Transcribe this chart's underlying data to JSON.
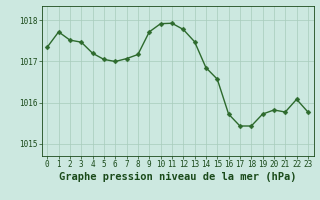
{
  "x": [
    0,
    1,
    2,
    3,
    4,
    5,
    6,
    7,
    8,
    9,
    10,
    11,
    12,
    13,
    14,
    15,
    16,
    17,
    18,
    19,
    20,
    21,
    22,
    23
  ],
  "y": [
    1017.35,
    1017.72,
    1017.52,
    1017.47,
    1017.2,
    1017.05,
    1017.0,
    1017.07,
    1017.17,
    1017.72,
    1017.92,
    1017.93,
    1017.78,
    1017.48,
    1016.85,
    1016.57,
    1015.72,
    1015.43,
    1015.43,
    1015.72,
    1015.82,
    1015.77,
    1016.08,
    1015.77
  ],
  "line_color": "#2d6a2d",
  "marker_color": "#2d6a2d",
  "bg_color": "#cce8e0",
  "plot_bg_color": "#cce8e0",
  "grid_color": "#a8ccbb",
  "text_color": "#1a4a1a",
  "xlabel": "Graphe pression niveau de la mer (hPa)",
  "ylim": [
    1014.7,
    1018.35
  ],
  "xlim": [
    -0.5,
    23.5
  ],
  "yticks": [
    1015,
    1016,
    1017,
    1018
  ],
  "xticks": [
    0,
    1,
    2,
    3,
    4,
    5,
    6,
    7,
    8,
    9,
    10,
    11,
    12,
    13,
    14,
    15,
    16,
    17,
    18,
    19,
    20,
    21,
    22,
    23
  ],
  "tick_fontsize": 5.5,
  "xlabel_fontsize": 7.5,
  "linewidth": 1.0,
  "markersize": 2.5
}
